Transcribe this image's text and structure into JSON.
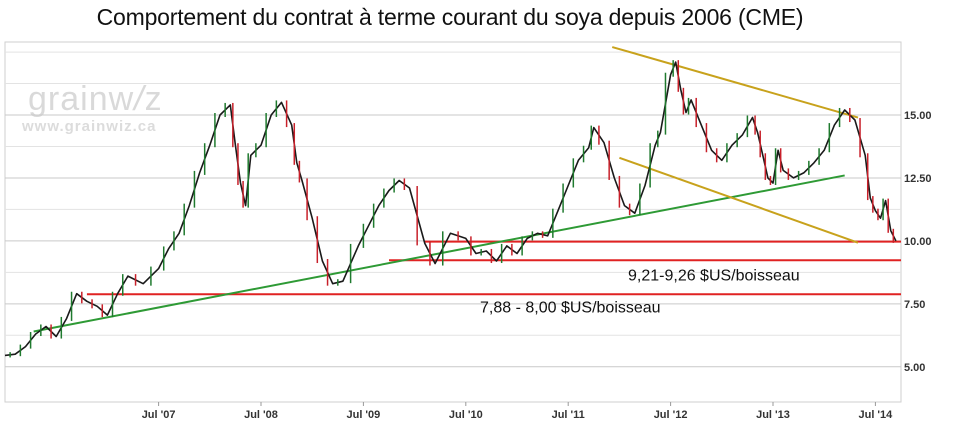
{
  "title": "Comportement du contrat à terme courant du soya depuis 2006 (CME)",
  "watermark": {
    "brand": "grainwiz",
    "url": "www.grainwiz.ca"
  },
  "chart_data": {
    "type": "line",
    "x_tick_labels": [
      "Jul '07",
      "Jul '08",
      "Jul '09",
      "Jul '10",
      "Jul '11",
      "Jul '12",
      "Jul '13",
      "Jul '14"
    ],
    "y_tick_labels": [
      "5.00",
      "7.50",
      "10.00",
      "12.50",
      "15.00"
    ],
    "ylim": [
      3.6,
      17.9
    ],
    "xlim": [
      2006.0,
      2014.75
    ],
    "grid": "horizontal",
    "series": [
      {
        "color": "#1a1a1a",
        "x": [
          2006.0,
          2006.1,
          2006.2,
          2006.3,
          2006.4,
          2006.5,
          2006.6,
          2006.7,
          2006.8,
          2006.9,
          2007.0,
          2007.1,
          2007.2,
          2007.35,
          2007.5,
          2007.6,
          2007.7,
          2007.8,
          2007.9,
          2008.0,
          2008.1,
          2008.2,
          2008.25,
          2008.3,
          2008.35,
          2008.4,
          2008.5,
          2008.6,
          2008.7,
          2008.8,
          2008.85,
          2008.9,
          2009.0,
          2009.1,
          2009.2,
          2009.3,
          2009.45,
          2009.55,
          2009.65,
          2009.75,
          2009.85,
          2009.95,
          2010.1,
          2010.2,
          2010.35,
          2010.5,
          2010.6,
          2010.7,
          2010.8,
          2010.9,
          2011.0,
          2011.1,
          2011.2,
          2011.3,
          2011.4,
          2011.5,
          2011.6,
          2011.7,
          2011.75,
          2011.85,
          2011.95,
          2012.05,
          2012.15,
          2012.25,
          2012.35,
          2012.4,
          2012.5,
          2012.55,
          2012.6,
          2012.65,
          2012.7,
          2012.8,
          2012.9,
          2013.0,
          2013.1,
          2013.2,
          2013.3,
          2013.35,
          2013.4,
          2013.45,
          2013.5,
          2013.55,
          2013.6,
          2013.7,
          2013.8,
          2013.9,
          2014.0,
          2014.1,
          2014.2,
          2014.3,
          2014.4,
          2014.45,
          2014.5,
          2014.55,
          2014.6,
          2014.65,
          2014.7
        ],
        "values": [
          5.45,
          5.5,
          5.8,
          6.3,
          6.6,
          6.2,
          6.9,
          7.9,
          7.6,
          7.4,
          7.05,
          7.9,
          8.6,
          8.3,
          8.9,
          9.7,
          10.3,
          11.4,
          12.7,
          13.8,
          15.0,
          15.4,
          13.8,
          12.3,
          11.4,
          13.4,
          13.8,
          15.0,
          15.5,
          14.6,
          13.1,
          12.4,
          10.9,
          9.2,
          8.3,
          8.4,
          9.8,
          10.6,
          11.4,
          12.0,
          12.4,
          12.1,
          9.9,
          9.1,
          10.3,
          10.1,
          9.5,
          9.6,
          9.2,
          9.8,
          9.5,
          10.1,
          10.3,
          10.2,
          11.2,
          12.2,
          13.2,
          13.7,
          14.5,
          13.9,
          12.5,
          11.4,
          11.1,
          12.2,
          13.8,
          14.3,
          16.6,
          17.1,
          16.0,
          15.1,
          15.6,
          14.6,
          13.6,
          13.2,
          13.8,
          14.2,
          14.9,
          14.3,
          13.4,
          12.5,
          12.3,
          13.6,
          12.8,
          12.5,
          12.7,
          13.1,
          13.6,
          14.6,
          15.2,
          14.8,
          13.4,
          11.7,
          11.2,
          10.9,
          11.6,
          10.4,
          10.0
        ]
      }
    ],
    "annotations": [
      {
        "kind": "support",
        "label": "",
        "color": "#e02222",
        "x1": 2010.1,
        "x2": 2014.75,
        "y1": 9.97,
        "y2": 9.97
      },
      {
        "kind": "support",
        "label": "9,21-9,26 $US/boisseau",
        "color": "#e02222",
        "x1": 2009.75,
        "x2": 2014.75,
        "y1": 9.23,
        "y2": 9.23
      },
      {
        "kind": "support",
        "label": "7,88 - 8,00 $US/boisseau",
        "color": "#e02222",
        "x1": 2006.8,
        "x2": 2014.75,
        "y1": 7.88,
        "y2": 7.88
      },
      {
        "kind": "trend",
        "label": "",
        "color": "#2e9a35",
        "x1": 2006.28,
        "x2": 2014.2,
        "y1": 6.4,
        "y2": 12.6
      },
      {
        "kind": "channel",
        "label": "",
        "color": "#c8a21c",
        "x1": 2011.93,
        "x2": 2014.33,
        "y1": 17.7,
        "y2": 14.9
      },
      {
        "kind": "channel",
        "label": "",
        "color": "#c8a21c",
        "x1": 2012.0,
        "x2": 2014.33,
        "y1": 13.3,
        "y2": 9.93
      }
    ]
  }
}
